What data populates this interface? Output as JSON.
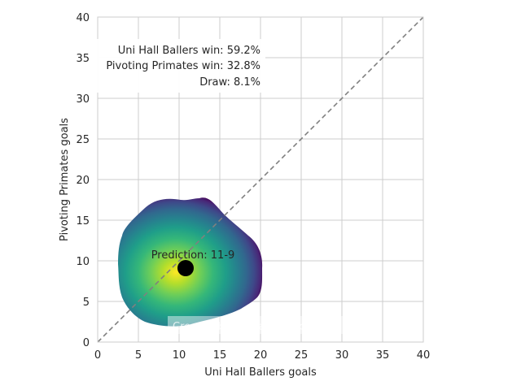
{
  "chart_data": {
    "type": "scatter",
    "xlabel": "Uni Hall Ballers goals",
    "ylabel": "Pivoting Primates goals",
    "xlim": [
      0,
      40
    ],
    "ylim": [
      0,
      40
    ],
    "xticks": [
      "0",
      "5",
      "10",
      "15",
      "20",
      "25",
      "30",
      "35",
      "40"
    ],
    "yticks": [
      "0",
      "5",
      "10",
      "15",
      "20",
      "25",
      "30",
      "35",
      "40"
    ],
    "grid": true,
    "reference_line": {
      "style": "dashed",
      "color": "#808080",
      "from": [
        0,
        0
      ],
      "to": [
        40,
        40
      ]
    },
    "density": {
      "colormap": "viridis",
      "peak": [
        10,
        8.5
      ],
      "approx_x_range": [
        2.5,
        20
      ],
      "approx_y_range": [
        2,
        18
      ]
    },
    "prediction": {
      "label": "Prediction: 11-9",
      "x": 10.8,
      "y": 9.1
    },
    "outcomes": [
      {
        "label": "Uni Hall Ballers win: 59.2%"
      },
      {
        "label": "Pivoting Primates win: 32.8%"
      },
      {
        "label": "Draw: 8.1%"
      }
    ],
    "watermark": "Created by Michael Nefiodovas"
  }
}
